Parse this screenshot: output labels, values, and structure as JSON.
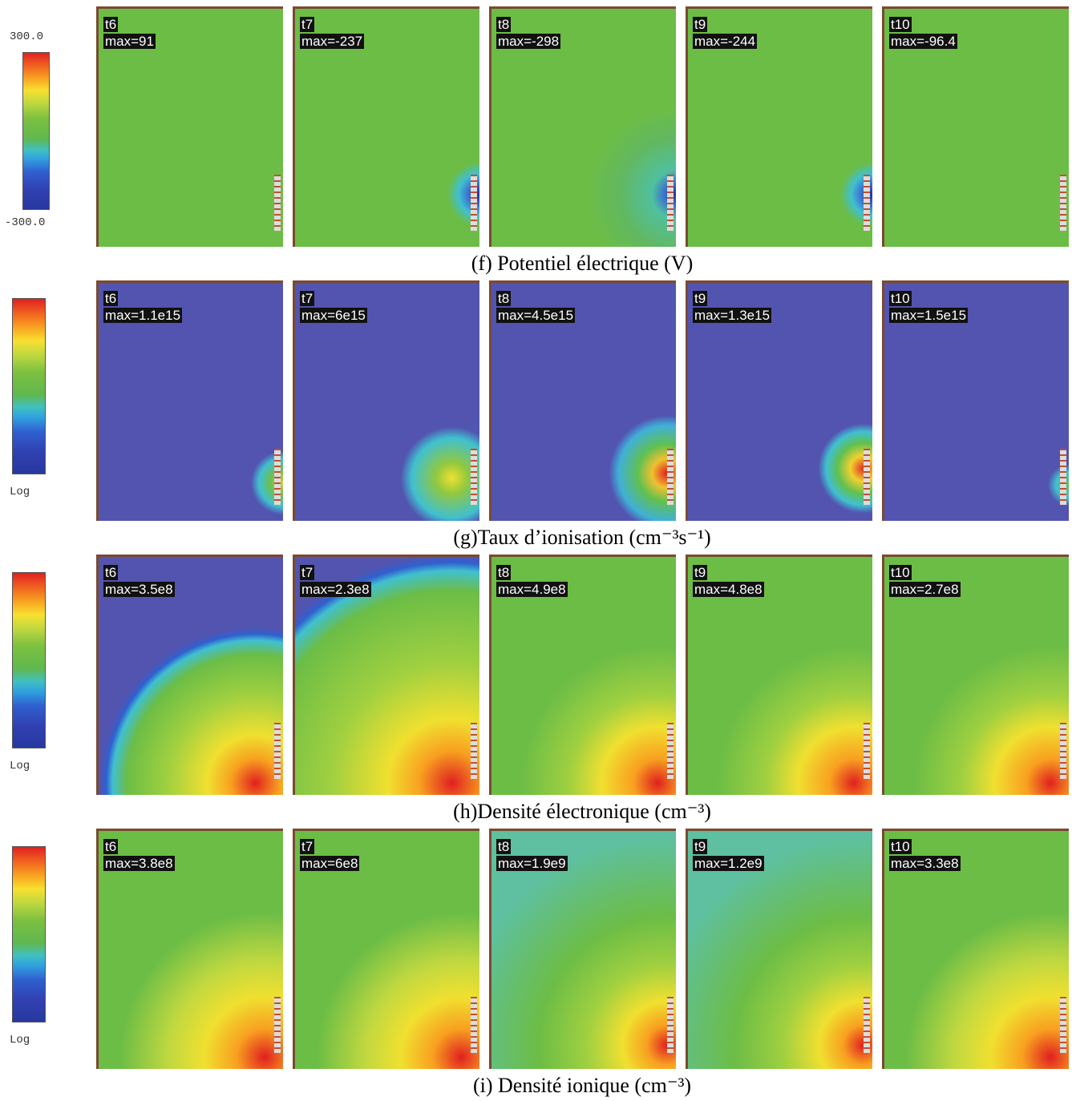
{
  "rows": [
    {
      "colorbar": {
        "top": "300.0",
        "bottom": "-300.0"
      },
      "panels": [
        {
          "time": "t6",
          "max": "max=91"
        },
        {
          "time": "t7",
          "max": "max=-237"
        },
        {
          "time": "t8",
          "max": "max=-298"
        },
        {
          "time": "t9",
          "max": "max=-244"
        },
        {
          "time": "t10",
          "max": "max=-96.4"
        }
      ],
      "caption": "(f) Potentiel électrique (V)"
    },
    {
      "colorbar": {
        "scale": "Log"
      },
      "panels": [
        {
          "time": "t6",
          "max": "max=1.1e15"
        },
        {
          "time": "t7",
          "max": "max=6e15"
        },
        {
          "time": "t8",
          "max": "max=4.5e15"
        },
        {
          "time": "t9",
          "max": "max=1.3e15"
        },
        {
          "time": "t10",
          "max": "max=1.5e15"
        }
      ],
      "caption": "(g)Taux d’ionisation (cm⁻³s⁻¹)"
    },
    {
      "colorbar": {
        "scale": "Log"
      },
      "panels": [
        {
          "time": "t6",
          "max": "max=3.5e8"
        },
        {
          "time": "t7",
          "max": "max=2.3e8"
        },
        {
          "time": "t8",
          "max": "max=4.9e8"
        },
        {
          "time": "t9",
          "max": "max=4.8e8"
        },
        {
          "time": "t10",
          "max": "max=2.7e8"
        }
      ],
      "caption": "(h)Densité électronique (cm⁻³)"
    },
    {
      "colorbar": {
        "scale": "Log"
      },
      "panels": [
        {
          "time": "t6",
          "max": "max=3.8e8"
        },
        {
          "time": "t7",
          "max": "max=6e8"
        },
        {
          "time": "t8",
          "max": "max=1.9e9"
        },
        {
          "time": "t9",
          "max": "max=1.2e9"
        },
        {
          "time": "t10",
          "max": "max=3.3e8"
        }
      ],
      "caption": "(i) Densité ionique (cm⁻³)"
    }
  ]
}
